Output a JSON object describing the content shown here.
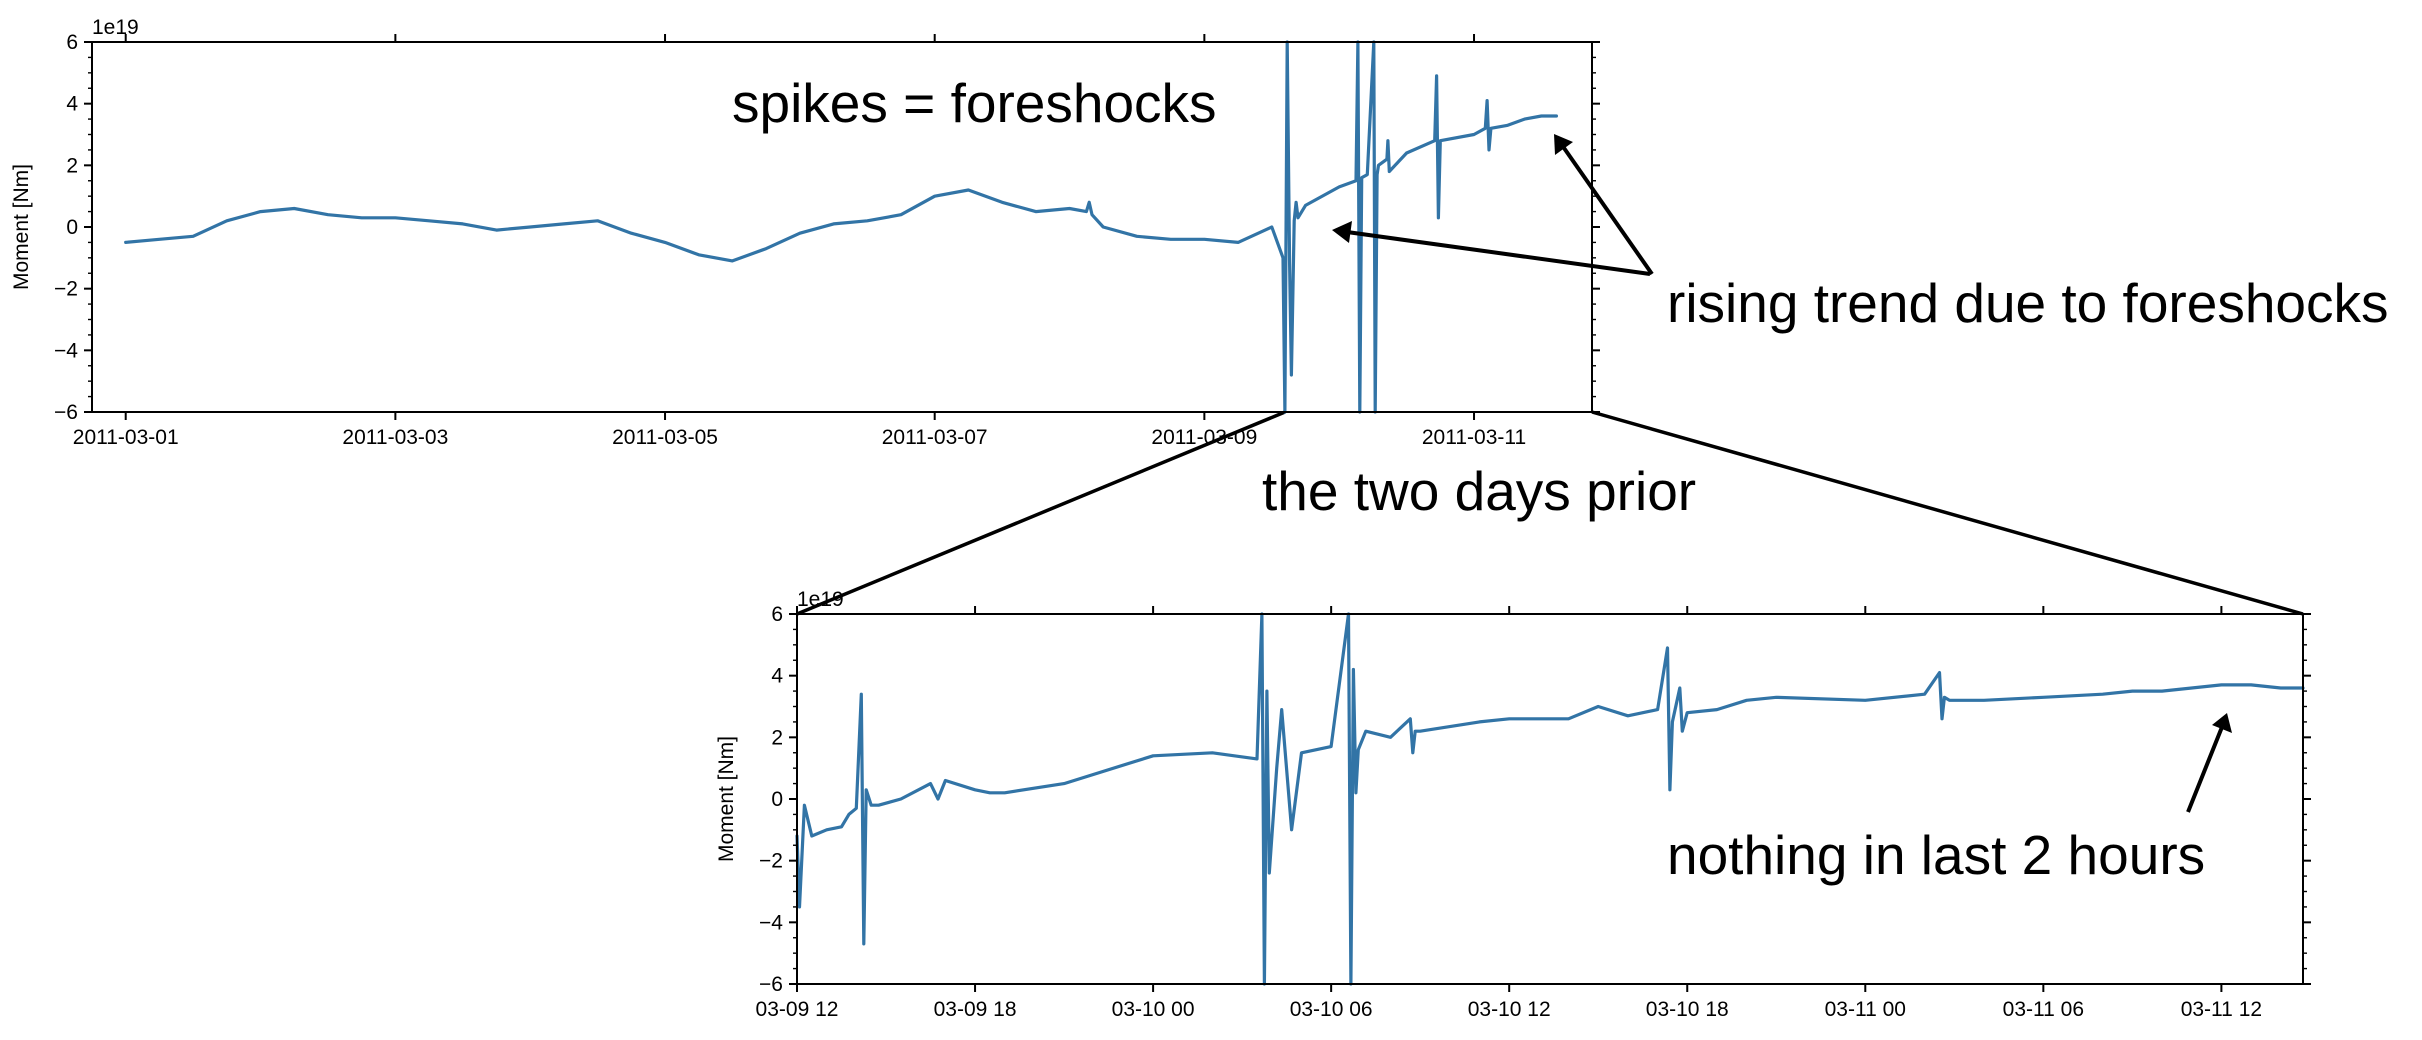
{
  "colors": {
    "series": "#3274a6",
    "axis": "#000000",
    "background": "#ffffff"
  },
  "chart_data": [
    {
      "type": "line",
      "panel": "top",
      "title": "",
      "xlabel": "",
      "ylabel": "Moment [Nm]",
      "y_offset_label": "1e19",
      "xlim": [
        "2011-02-28T18:00",
        "2011-03-11T21:00"
      ],
      "ylim": [
        -6,
        6
      ],
      "x_ticks": [
        "2011-03-01",
        "2011-03-03",
        "2011-03-05",
        "2011-03-07",
        "2011-03-09",
        "2011-03-11"
      ],
      "y_ticks": [
        -6,
        -4,
        -2,
        0,
        2,
        4,
        6
      ],
      "y_tick_labels": [
        "−6",
        "−4",
        "−2",
        "0",
        "2",
        "4",
        "6"
      ],
      "grid": false,
      "series": [
        {
          "x": [
            "2011-03-01T00:00",
            "2011-03-01T06:00",
            "2011-03-01T12:00",
            "2011-03-01T18:00",
            "2011-03-02T00:00",
            "2011-03-02T06:00",
            "2011-03-02T12:00",
            "2011-03-02T18:00",
            "2011-03-03T00:00",
            "2011-03-03T06:00",
            "2011-03-03T12:00",
            "2011-03-03T18:00",
            "2011-03-04T00:00",
            "2011-03-04T06:00",
            "2011-03-04T12:00",
            "2011-03-04T18:00",
            "2011-03-05T00:00",
            "2011-03-05T06:00",
            "2011-03-05T12:00",
            "2011-03-05T18:00",
            "2011-03-06T00:00",
            "2011-03-06T06:00",
            "2011-03-06T12:00",
            "2011-03-06T18:00",
            "2011-03-07T00:00",
            "2011-03-07T06:00",
            "2011-03-07T12:00",
            "2011-03-07T18:00",
            "2011-03-08T00:00",
            "2011-03-08T03:00",
            "2011-03-08T03:30",
            "2011-03-08T04:00",
            "2011-03-08T06:00",
            "2011-03-08T12:00",
            "2011-03-08T18:00",
            "2011-03-09T00:00",
            "2011-03-09T06:00",
            "2011-03-09T12:00",
            "2011-03-09T14:00",
            "2011-03-09T14:20",
            "2011-03-09T14:45",
            "2011-03-09T15:10",
            "2011-03-09T15:30",
            "2011-03-09T16:00",
            "2011-03-09T16:20",
            "2011-03-09T16:40",
            "2011-03-09T18:00",
            "2011-03-10T00:00",
            "2011-03-10T03:00",
            "2011-03-10T03:20",
            "2011-03-10T03:40",
            "2011-03-10T04:00",
            "2011-03-10T05:00",
            "2011-03-10T06:10",
            "2011-03-10T06:25",
            "2011-03-10T06:45",
            "2011-03-10T07:00",
            "2011-03-10T08:30",
            "2011-03-10T08:40",
            "2011-03-10T08:55",
            "2011-03-10T12:00",
            "2011-03-10T17:00",
            "2011-03-10T17:20",
            "2011-03-10T17:40",
            "2011-03-10T18:00",
            "2011-03-11T00:00",
            "2011-03-11T02:00",
            "2011-03-11T02:20",
            "2011-03-11T02:40",
            "2011-03-11T03:00",
            "2011-03-11T06:00",
            "2011-03-11T09:00",
            "2011-03-11T12:00",
            "2011-03-11T14:40"
          ],
          "values": [
            -0.5,
            -0.4,
            -0.3,
            0.2,
            0.5,
            0.6,
            0.4,
            0.3,
            0.3,
            0.2,
            0.1,
            -0.1,
            0.0,
            0.1,
            0.2,
            -0.2,
            -0.5,
            -0.9,
            -1.1,
            -0.7,
            -0.2,
            0.1,
            0.2,
            0.4,
            1.0,
            1.2,
            0.8,
            0.5,
            0.6,
            0.5,
            0.8,
            0.4,
            0.0,
            -0.3,
            -0.4,
            -0.4,
            -0.5,
            0.0,
            -1.0,
            -6.0,
            6.0,
            -1.2,
            -4.8,
            0.2,
            0.8,
            0.3,
            0.7,
            1.3,
            1.5,
            6.0,
            -6.0,
            1.6,
            1.7,
            6.0,
            -6.0,
            1.7,
            2.0,
            2.2,
            2.8,
            1.8,
            2.4,
            2.8,
            4.9,
            0.3,
            2.8,
            3.0,
            3.2,
            4.1,
            2.5,
            3.2,
            3.3,
            3.5,
            3.6,
            3.6
          ]
        }
      ]
    },
    {
      "type": "line",
      "panel": "bottom",
      "title": "",
      "xlabel": "",
      "ylabel": "Moment [Nm]",
      "y_offset_label": "1e19",
      "xlim": [
        "2011-03-09T12:00",
        "2011-03-11T14:45"
      ],
      "ylim": [
        -6,
        6
      ],
      "x_ticks": [
        "2011-03-09T12:00",
        "2011-03-09T18:00",
        "2011-03-10T00:00",
        "2011-03-10T06:00",
        "2011-03-10T12:00",
        "2011-03-10T18:00",
        "2011-03-11T00:00",
        "2011-03-11T06:00",
        "2011-03-11T12:00"
      ],
      "x_tick_labels": [
        "03-09 12",
        "03-09 18",
        "03-10 00",
        "03-10 06",
        "03-10 12",
        "03-10 18",
        "03-11 00",
        "03-11 06",
        "03-11 12"
      ],
      "y_ticks": [
        -6,
        -4,
        -2,
        0,
        2,
        4,
        6
      ],
      "y_tick_labels": [
        "−6",
        "−4",
        "−2",
        "0",
        "2",
        "4",
        "6"
      ],
      "grid": false,
      "series": [
        {
          "x": [
            "2011-03-09T12:00",
            "2011-03-09T12:05",
            "2011-03-09T12:15",
            "2011-03-09T12:30",
            "2011-03-09T13:00",
            "2011-03-09T13:30",
            "2011-03-09T13:45",
            "2011-03-09T14:00",
            "2011-03-09T14:10",
            "2011-03-09T14:15",
            "2011-03-09T14:20",
            "2011-03-09T14:30",
            "2011-03-09T14:45",
            "2011-03-09T15:30",
            "2011-03-09T16:30",
            "2011-03-09T16:45",
            "2011-03-09T17:00",
            "2011-03-09T18:00",
            "2011-03-09T18:30",
            "2011-03-09T19:00",
            "2011-03-09T21:00",
            "2011-03-10T00:00",
            "2011-03-10T02:00",
            "2011-03-10T03:30",
            "2011-03-10T03:40",
            "2011-03-10T03:45",
            "2011-03-10T03:50",
            "2011-03-10T03:55",
            "2011-03-10T04:10",
            "2011-03-10T04:20",
            "2011-03-10T04:40",
            "2011-03-10T05:00",
            "2011-03-10T06:00",
            "2011-03-10T06:35",
            "2011-03-10T06:40",
            "2011-03-10T06:45",
            "2011-03-10T06:50",
            "2011-03-10T06:55",
            "2011-03-10T07:10",
            "2011-03-10T08:00",
            "2011-03-10T08:40",
            "2011-03-10T08:45",
            "2011-03-10T08:50",
            "2011-03-10T09:00",
            "2011-03-10T11:00",
            "2011-03-10T12:00",
            "2011-03-10T14:00",
            "2011-03-10T15:00",
            "2011-03-10T16:00",
            "2011-03-10T17:00",
            "2011-03-10T17:20",
            "2011-03-10T17:25",
            "2011-03-10T17:30",
            "2011-03-10T17:45",
            "2011-03-10T17:50",
            "2011-03-10T18:00",
            "2011-03-10T19:00",
            "2011-03-10T20:00",
            "2011-03-10T21:00",
            "2011-03-11T00:00",
            "2011-03-11T02:00",
            "2011-03-11T02:30",
            "2011-03-11T02:35",
            "2011-03-11T02:40",
            "2011-03-11T02:50",
            "2011-03-11T04:00",
            "2011-03-11T06:00",
            "2011-03-11T08:00",
            "2011-03-11T09:00",
            "2011-03-11T10:00",
            "2011-03-11T12:00",
            "2011-03-11T13:00",
            "2011-03-11T14:00",
            "2011-03-11T14:45"
          ],
          "values": [
            -1.2,
            -3.5,
            -0.2,
            -1.2,
            -1.0,
            -0.9,
            -0.5,
            -0.3,
            3.4,
            -4.7,
            0.3,
            -0.2,
            -0.2,
            0.0,
            0.5,
            0.0,
            0.6,
            0.3,
            0.2,
            0.2,
            0.5,
            1.4,
            1.5,
            1.3,
            6.0,
            -6.0,
            3.5,
            -2.4,
            1.0,
            2.9,
            -1.0,
            1.5,
            1.7,
            6.0,
            -6.0,
            4.2,
            0.2,
            1.6,
            2.2,
            2.0,
            2.6,
            1.5,
            2.2,
            2.2,
            2.5,
            2.6,
            2.6,
            3.0,
            2.7,
            2.9,
            4.9,
            0.3,
            2.5,
            3.6,
            2.2,
            2.8,
            2.9,
            3.2,
            3.3,
            3.2,
            3.4,
            4.1,
            2.6,
            3.3,
            3.2,
            3.2,
            3.3,
            3.4,
            3.5,
            3.5,
            3.7,
            3.7,
            3.6,
            3.6
          ]
        }
      ]
    }
  ],
  "annotations": {
    "spikes": "spikes = foreshocks",
    "rising": "rising trend due to foreshocks",
    "two_days": "the two days prior",
    "nothing": "nothing in last 2 hours"
  }
}
